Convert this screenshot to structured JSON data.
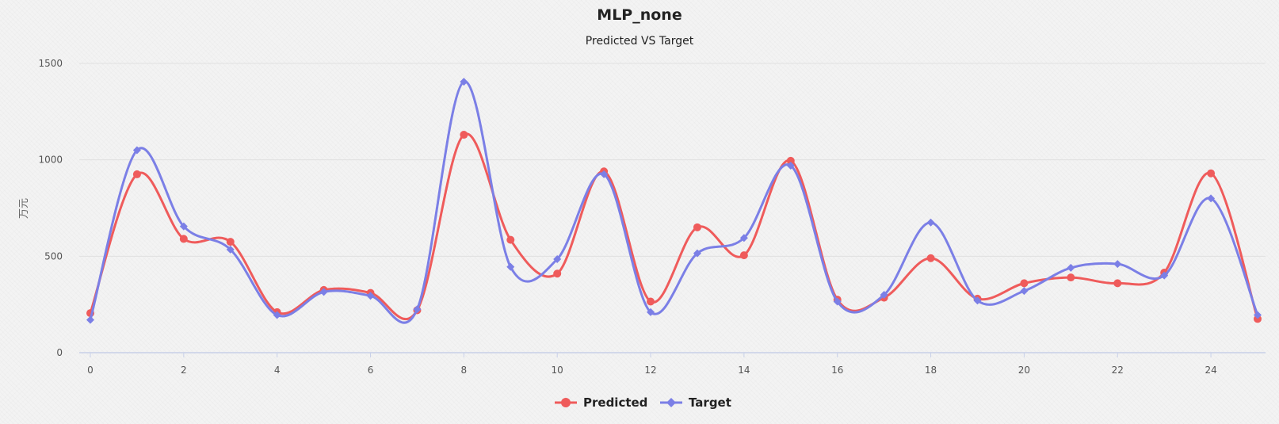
{
  "chart_data": {
    "type": "line",
    "title": "MLP_none",
    "subtitle": "Predicted VS Target",
    "xlabel": "",
    "ylabel": "万元",
    "x": [
      0,
      1,
      2,
      3,
      4,
      5,
      6,
      7,
      8,
      9,
      10,
      11,
      12,
      13,
      14,
      15,
      16,
      17,
      18,
      19,
      20,
      21,
      22,
      23,
      24,
      25
    ],
    "x_tick_labels": [
      "0",
      "2",
      "4",
      "6",
      "8",
      "10",
      "12",
      "14",
      "16",
      "18",
      "20",
      "22",
      "24"
    ],
    "y_tick_labels": [
      "0",
      "500",
      "1000",
      "1500"
    ],
    "ylim": [
      0,
      1500
    ],
    "xlim": [
      0,
      25
    ],
    "grid": true,
    "legend_placement": "bottom-center",
    "series": [
      {
        "name": "Predicted",
        "color": "#ef5b5b",
        "marker": "circle",
        "values": [
          205,
          925,
          590,
          575,
          210,
          325,
          310,
          220,
          1130,
          585,
          410,
          940,
          265,
          650,
          505,
          995,
          275,
          285,
          490,
          280,
          360,
          390,
          360,
          415,
          930,
          175
        ]
      },
      {
        "name": "Target",
        "color": "#7b7fe6",
        "marker": "diamond",
        "values": [
          170,
          1050,
          655,
          535,
          195,
          315,
          295,
          225,
          1405,
          445,
          485,
          925,
          210,
          515,
          595,
          970,
          265,
          300,
          675,
          270,
          320,
          440,
          460,
          400,
          800,
          195
        ]
      }
    ]
  }
}
